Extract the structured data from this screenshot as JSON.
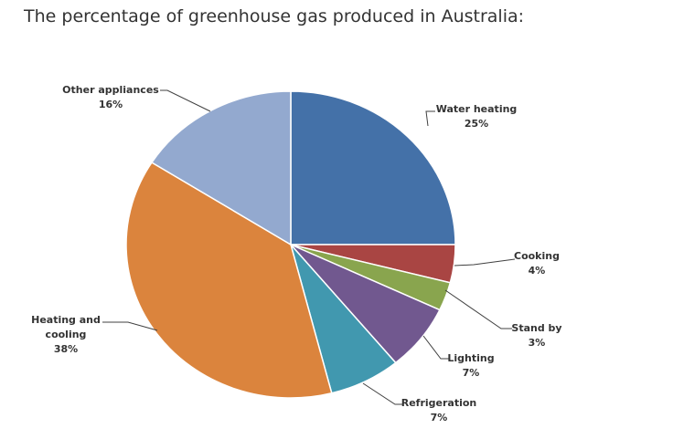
{
  "page": {
    "title": "The percentage of greenhouse gas produced in Australia:"
  },
  "chart_data": {
    "type": "pie",
    "title": "",
    "slices": [
      {
        "name": "Water heating",
        "value": 25,
        "label_lines": [
          "Water heating",
          "25%"
        ],
        "color": "#4471A8"
      },
      {
        "name": "Cooking",
        "value": 4,
        "label_lines": [
          "Cooking",
          "4%"
        ],
        "color": "#A94543"
      },
      {
        "name": "Stand by",
        "value": 3,
        "label_lines": [
          "Stand by",
          "3%"
        ],
        "color": "#89A54E"
      },
      {
        "name": "Lighting",
        "value": 7,
        "label_lines": [
          "Lighting",
          "7%"
        ],
        "color": "#71588F"
      },
      {
        "name": "Refrigeration",
        "value": 7,
        "label_lines": [
          "Refrigeration",
          "7%"
        ],
        "color": "#4198AF"
      },
      {
        "name": "Heating and cooling",
        "value": 38,
        "label_lines": [
          "Heating and",
          "cooling",
          "38%"
        ],
        "color": "#DB843D"
      },
      {
        "name": "Other appliances",
        "value": 16,
        "label_lines": [
          "Other appliances",
          "16%"
        ],
        "color": "#93A9CF"
      }
    ]
  }
}
